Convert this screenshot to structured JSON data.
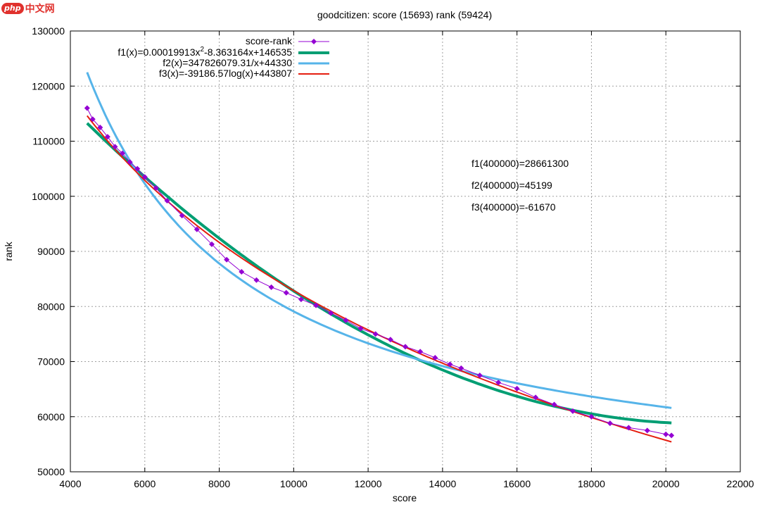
{
  "watermark": {
    "brand": "php",
    "site": "中文网"
  },
  "chart_data": {
    "type": "scatter",
    "title": "goodcitizen: score (15693) rank (59424)",
    "xlabel": "score",
    "ylabel": "rank",
    "xlim": [
      4000,
      22000
    ],
    "ylim": [
      50000,
      130000
    ],
    "x_ticks": [
      4000,
      6000,
      8000,
      10000,
      12000,
      14000,
      16000,
      18000,
      20000,
      22000
    ],
    "y_ticks": [
      50000,
      60000,
      70000,
      80000,
      90000,
      100000,
      110000,
      120000,
      130000
    ],
    "grid": true,
    "legend_position": "top-right",
    "series": [
      {
        "name": "score-rank",
        "kind": "points",
        "color": "#9400d3",
        "x": [
          4450,
          4600,
          4800,
          5000,
          5200,
          5400,
          5600,
          5800,
          6000,
          6300,
          6600,
          7000,
          7400,
          7800,
          8200,
          8600,
          9000,
          9400,
          9800,
          10200,
          10600,
          11000,
          11400,
          11800,
          12200,
          12600,
          13000,
          13400,
          13800,
          14200,
          14500,
          15000,
          15500,
          16000,
          16500,
          17000,
          17500,
          18000,
          18500,
          19000,
          19500,
          20000,
          20150
        ],
        "y": [
          116000,
          114000,
          112500,
          110800,
          109000,
          107800,
          106200,
          105000,
          103500,
          101500,
          99200,
          96500,
          94000,
          91300,
          88500,
          86300,
          84800,
          83500,
          82500,
          81300,
          80200,
          78800,
          77500,
          76000,
          75000,
          74000,
          72700,
          71800,
          70700,
          69500,
          68800,
          67500,
          66200,
          65100,
          63500,
          62200,
          61000,
          60000,
          58800,
          58000,
          57500,
          56800,
          56600
        ]
      },
      {
        "name": "f1(x)=0.00019913x²-8.363164x+146535",
        "kind": "line",
        "color": "#009e73",
        "formula": "quadratic",
        "coefficients": [
          0.00019913,
          -8.363164,
          146535
        ],
        "x_range": [
          4450,
          20150
        ]
      },
      {
        "name": "f2(x)=347826079.31/x+44330",
        "kind": "line",
        "color": "#56b4e9",
        "formula": "inverse",
        "coefficients": [
          347826079.31,
          44330
        ],
        "x_range": [
          4450,
          20150
        ]
      },
      {
        "name": "f3(x)=-39186.57log(x)+443807",
        "kind": "line",
        "color": "#e51e10",
        "formula": "log",
        "coefficients": [
          -39186.57,
          443807
        ],
        "x_range": [
          4450,
          20150
        ]
      }
    ],
    "legend_labels": {
      "s0": "score-rank",
      "f1_pre": "f1(x)=0.00019913x",
      "f1_sup": "2",
      "f1_post": "-8.363164x+146535",
      "f2": "f2(x)=347826079.31/x+44330",
      "f3": "f3(x)=-39186.57log(x)+443807"
    },
    "annotations": [
      "f1(400000)=28661300",
      "f2(400000)=45199",
      "f3(400000)=-61670"
    ]
  }
}
